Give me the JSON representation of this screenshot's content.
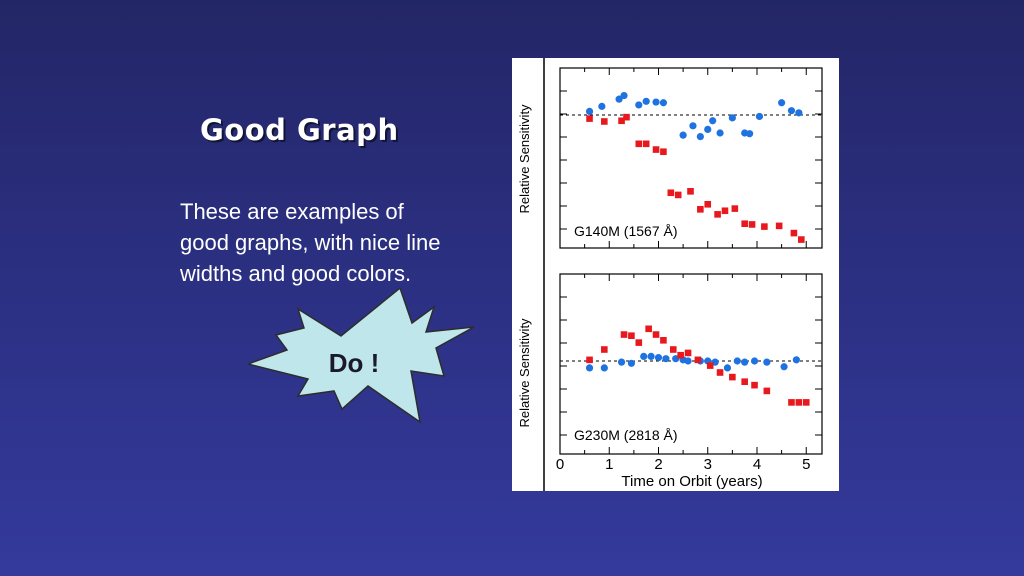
{
  "slide": {
    "title": "Good Graph",
    "body": "These are examples of good graphs, with nice line widths and good colors.",
    "callout": "Do !"
  },
  "colors": {
    "red_series": "#e8191e",
    "blue_series": "#1f73e0",
    "callout_fill": "#bfe6ea",
    "background": "#2b2f80"
  },
  "chart_data": [
    {
      "type": "scatter",
      "panel_label": "G140M (1567 Å)",
      "ylabel": "Relative Sensitivity",
      "xlim": [
        0,
        5
      ],
      "reference_line": "dashed",
      "series": [
        {
          "color": "#1f73e0",
          "marker": "circle",
          "x": [
            0.6,
            0.85,
            1.2,
            1.3,
            1.6,
            1.75,
            1.95,
            2.1,
            2.5,
            2.7,
            2.85,
            3.0,
            3.1,
            3.25,
            3.5,
            3.75,
            3.85,
            4.05,
            4.5,
            4.7,
            4.85
          ],
          "y": [
            1.005,
            1.012,
            1.022,
            1.027,
            1.014,
            1.019,
            1.018,
            1.017,
            0.972,
            0.985,
            0.97,
            0.98,
            0.992,
            0.975,
            0.996,
            0.975,
            0.974,
            0.998,
            1.017,
            1.006,
            1.003
          ]
        },
        {
          "color": "#e8191e",
          "marker": "square",
          "x": [
            0.6,
            0.9,
            1.25,
            1.35,
            1.6,
            1.75,
            1.95,
            2.1,
            2.25,
            2.4,
            2.65,
            2.85,
            3.0,
            3.2,
            3.35,
            3.55,
            3.75,
            3.9,
            4.15,
            4.45,
            4.75,
            4.9
          ],
          "y": [
            0.995,
            0.991,
            0.992,
            0.997,
            0.96,
            0.96,
            0.952,
            0.949,
            0.892,
            0.889,
            0.894,
            0.869,
            0.876,
            0.862,
            0.867,
            0.87,
            0.849,
            0.848,
            0.845,
            0.846,
            0.836,
            0.827
          ]
        }
      ]
    },
    {
      "type": "scatter",
      "panel_label": "G230M (2818 Å)",
      "ylabel": "Relative Sensitivity",
      "xlabel": "Time on Orbit (years)",
      "xlim": [
        0,
        5
      ],
      "xticks": [
        0,
        1,
        2,
        3,
        4,
        5
      ],
      "reference_line": "dashed",
      "series": [
        {
          "color": "#1f73e0",
          "marker": "circle",
          "x": [
            0.6,
            0.9,
            1.25,
            1.45,
            1.7,
            1.85,
            2.0,
            2.15,
            2.35,
            2.5,
            2.6,
            2.85,
            3.0,
            3.15,
            3.4,
            3.6,
            3.75,
            3.95,
            4.2,
            4.55,
            4.8
          ],
          "y": [
            0.994,
            0.994,
            0.999,
            0.998,
            1.004,
            1.004,
            1.003,
            1.002,
            1.002,
            1.001,
            1.0,
            1.0,
            1.0,
            0.999,
            0.994,
            1.0,
            0.999,
            1.0,
            0.999,
            0.995,
            1.001
          ]
        },
        {
          "color": "#e8191e",
          "marker": "square",
          "x": [
            0.6,
            0.9,
            1.3,
            1.45,
            1.6,
            1.8,
            1.95,
            2.1,
            2.3,
            2.45,
            2.6,
            2.8,
            3.05,
            3.25,
            3.5,
            3.75,
            3.95,
            4.2,
            4.7,
            4.85,
            5.0
          ],
          "y": [
            1.001,
            1.01,
            1.023,
            1.022,
            1.016,
            1.028,
            1.023,
            1.018,
            1.01,
            1.005,
            1.007,
            1.001,
            0.996,
            0.99,
            0.986,
            0.982,
            0.979,
            0.974,
            0.964,
            0.964,
            0.964
          ]
        }
      ]
    }
  ]
}
